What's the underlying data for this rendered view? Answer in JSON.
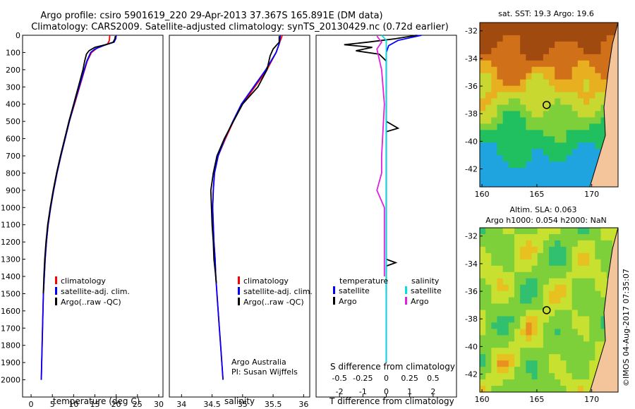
{
  "header": {
    "title_line1": "Argo profile: csiro 5901619_220 29-Apr-2013 37.367S 165.891E (DM data)",
    "title_line2": "Climatology: CARS2009. Satellite-adjusted climatology: synTS_20130429.nc (0.72d earlier)"
  },
  "watermark": "©IMOS 04-Aug-2017 07:35:07",
  "colors": {
    "climatology": "#ff0000",
    "satellite": "#0000ff",
    "argo": "#000000",
    "salinity_satellite": "#00e0e0",
    "salinity_argo": "#e020e0"
  },
  "chart_data": [
    {
      "type": "line",
      "xlabel": "temperature (deg C)",
      "ylabel": "",
      "xlim": [
        -2,
        31
      ],
      "ylim": [
        2100,
        0
      ],
      "xticks": [
        0,
        5,
        10,
        15,
        20,
        25,
        30
      ],
      "yticks": [
        0,
        100,
        200,
        300,
        400,
        500,
        600,
        700,
        800,
        900,
        1000,
        1100,
        1200,
        1300,
        1400,
        1500,
        1600,
        1700,
        1800,
        1900,
        2000
      ],
      "legend": [
        "climatology",
        "satellite-adj. clim.",
        "Argo(..raw -QC)"
      ],
      "legend_position": "lower-left",
      "series": [
        {
          "name": "climatology",
          "depth": [
            0,
            30,
            50,
            75,
            100,
            150,
            200,
            300,
            400,
            500,
            600,
            700,
            800,
            900,
            1000,
            1100,
            1200,
            1300,
            1400,
            1500,
            1600,
            1700,
            1800,
            1900,
            2000
          ],
          "values": [
            18.5,
            18.4,
            18.0,
            15.5,
            14.2,
            13.2,
            12.6,
            11.4,
            10.2,
            9.0,
            8.0,
            7.0,
            6.1,
            5.3,
            4.6,
            4.0,
            3.6,
            3.3,
            3.1,
            2.9,
            2.8,
            2.7,
            2.6,
            2.5,
            2.4
          ]
        },
        {
          "name": "satellite-adj. clim.",
          "depth": [
            0,
            20,
            40,
            60,
            80,
            100,
            150,
            200,
            300,
            400,
            500,
            600,
            700,
            800,
            900,
            1000,
            1100,
            1200,
            1300,
            1400,
            1500,
            1600,
            1700,
            1800,
            1900,
            2000
          ],
          "values": [
            20.0,
            19.9,
            19.5,
            17.0,
            15.0,
            14.0,
            13.1,
            12.5,
            11.3,
            10.1,
            9.0,
            8.0,
            7.0,
            6.1,
            5.3,
            4.6,
            4.0,
            3.6,
            3.3,
            3.1,
            2.9,
            2.8,
            2.7,
            2.6,
            2.5,
            2.4
          ]
        },
        {
          "name": "Argo(..raw -QC)",
          "depth": [
            5,
            20,
            40,
            55,
            70,
            90,
            110,
            150,
            200,
            300,
            400,
            500,
            600,
            700,
            800,
            900,
            1000,
            1100,
            1200,
            1300,
            1400,
            1500
          ],
          "values": [
            19.8,
            19.7,
            19.3,
            17.5,
            15.0,
            13.6,
            13.0,
            12.6,
            12.2,
            11.1,
            10.0,
            8.9,
            7.9,
            6.9,
            6.0,
            5.2,
            4.5,
            3.9,
            3.5,
            3.2,
            3.0,
            2.9
          ]
        }
      ]
    },
    {
      "type": "line",
      "xlabel": "salinity",
      "ylabel": "",
      "xlim": [
        33.8,
        36.1
      ],
      "ylim": [
        2100,
        0
      ],
      "xticks": [
        34,
        34.5,
        35,
        35.5,
        36
      ],
      "legend": [
        "climatology",
        "satellite-adj. clim.",
        "Argo(..raw -QC)"
      ],
      "legend_position": "lower-right",
      "series": [
        {
          "name": "climatology",
          "depth": [
            0,
            50,
            100,
            200,
            300,
            400,
            500,
            600,
            700,
            800,
            900,
            1000,
            1100,
            1200,
            1300,
            1400,
            1500,
            1600,
            1700,
            1800,
            1900,
            2000
          ],
          "values": [
            35.65,
            35.6,
            35.55,
            35.4,
            35.2,
            35.0,
            34.85,
            34.72,
            34.6,
            34.54,
            34.52,
            34.51,
            34.52,
            34.53,
            34.55,
            34.56,
            34.58,
            34.6,
            34.62,
            34.64,
            34.66,
            34.68
          ]
        },
        {
          "name": "satellite-adj. clim.",
          "depth": [
            0,
            50,
            100,
            200,
            300,
            400,
            500,
            600,
            700,
            800,
            900,
            1000,
            1100,
            1200,
            1300,
            1400,
            1500,
            1600,
            1700,
            1800,
            1900,
            2000
          ],
          "values": [
            35.62,
            35.6,
            35.55,
            35.38,
            35.18,
            34.98,
            34.84,
            34.71,
            34.6,
            34.54,
            34.52,
            34.51,
            34.52,
            34.53,
            34.55,
            34.56,
            34.58,
            34.6,
            34.62,
            34.64,
            34.66,
            34.68
          ]
        },
        {
          "name": "Argo(..raw -QC)",
          "depth": [
            5,
            40,
            80,
            120,
            200,
            300,
            400,
            500,
            600,
            700,
            800,
            850,
            900,
            1000,
            1100,
            1200,
            1300,
            1400,
            1440
          ],
          "values": [
            35.6,
            35.6,
            35.5,
            35.45,
            35.4,
            35.25,
            35.0,
            34.85,
            34.7,
            34.58,
            34.52,
            34.5,
            34.48,
            34.49,
            34.5,
            34.52,
            34.53,
            34.56,
            34.57
          ]
        }
      ]
    },
    {
      "type": "line",
      "xlabel": "T difference from climatology",
      "xlabel_top": "S difference from climatology",
      "xlim_T": [
        -3,
        3
      ],
      "xticks_T": [
        -2,
        -1,
        0,
        1,
        2
      ],
      "xticks_S": [
        -0.5,
        -0.25,
        0,
        0.25,
        0.5
      ],
      "ylim": [
        2100,
        0
      ],
      "legend_groups": [
        {
          "title": "temperature",
          "items": [
            "satellite",
            "Argo"
          ]
        },
        {
          "title": "salinity",
          "items": [
            "satellite",
            "Argo"
          ]
        }
      ],
      "series": [
        {
          "name": "temperature satellite",
          "depth": [
            0,
            30,
            60,
            100,
            200,
            400,
            600,
            800,
            1000,
            1400,
            1900
          ],
          "values": [
            1.5,
            0.5,
            0.1,
            0.0,
            0.0,
            0.0,
            0.0,
            0.0,
            0.0,
            0.0,
            0.0
          ]
        },
        {
          "name": "temperature Argo",
          "depth": [
            0,
            20,
            40,
            55,
            70,
            90,
            110,
            150,
            300,
            500,
            540,
            560,
            600,
            900,
            1100,
            1300,
            1320,
            1340,
            1500
          ],
          "values": [
            1.3,
            0.4,
            -0.8,
            -1.8,
            -0.6,
            -1.3,
            -0.3,
            0.0,
            0.0,
            0.0,
            0.5,
            0.0,
            0.0,
            0.0,
            0.0,
            0.0,
            0.4,
            0.0,
            0.0
          ]
        },
        {
          "name": "salinity satellite",
          "depth": [
            0,
            30,
            60,
            100,
            200,
            400,
            600,
            800,
            1000,
            1400,
            1900
          ],
          "values": [
            -0.05,
            0.0,
            0.0,
            0.0,
            0.0,
            0.0,
            0.0,
            0.0,
            0.0,
            0.0,
            0.0
          ]
        },
        {
          "name": "salinity Argo",
          "depth": [
            5,
            40,
            80,
            200,
            400,
            700,
            800,
            900,
            1000,
            1200,
            1400
          ],
          "values": [
            -0.1,
            -0.05,
            -0.1,
            -0.05,
            -0.02,
            -0.05,
            -0.05,
            -0.1,
            -0.02,
            -0.02,
            -0.02
          ]
        }
      ],
      "annotation": [
        "Argo Australia",
        "PI: Susan Wijffels"
      ]
    },
    {
      "type": "heatmap",
      "title": "sat. SST: 19.3 Argo: 19.6",
      "xticks": [
        160,
        165,
        170
      ],
      "yticks": [
        -32,
        -34,
        -36,
        -38,
        -40,
        -42
      ],
      "xlim": [
        159.8,
        172.4
      ],
      "ylim": [
        -43.3,
        -31.4
      ],
      "marker": {
        "lon": 165.891,
        "lat": -37.367
      }
    },
    {
      "type": "heatmap",
      "title_line1": "Altim. SLA: 0.063",
      "title_line2": "Argo h1000: 0.054 h2000: NaN",
      "xticks": [
        160,
        165,
        170
      ],
      "yticks": [
        -32,
        -34,
        -36,
        -38,
        -40,
        -42
      ],
      "xlim": [
        159.8,
        172.4
      ],
      "ylim": [
        -43.3,
        -31.4
      ],
      "marker": {
        "lon": 165.891,
        "lat": -37.367
      }
    }
  ]
}
